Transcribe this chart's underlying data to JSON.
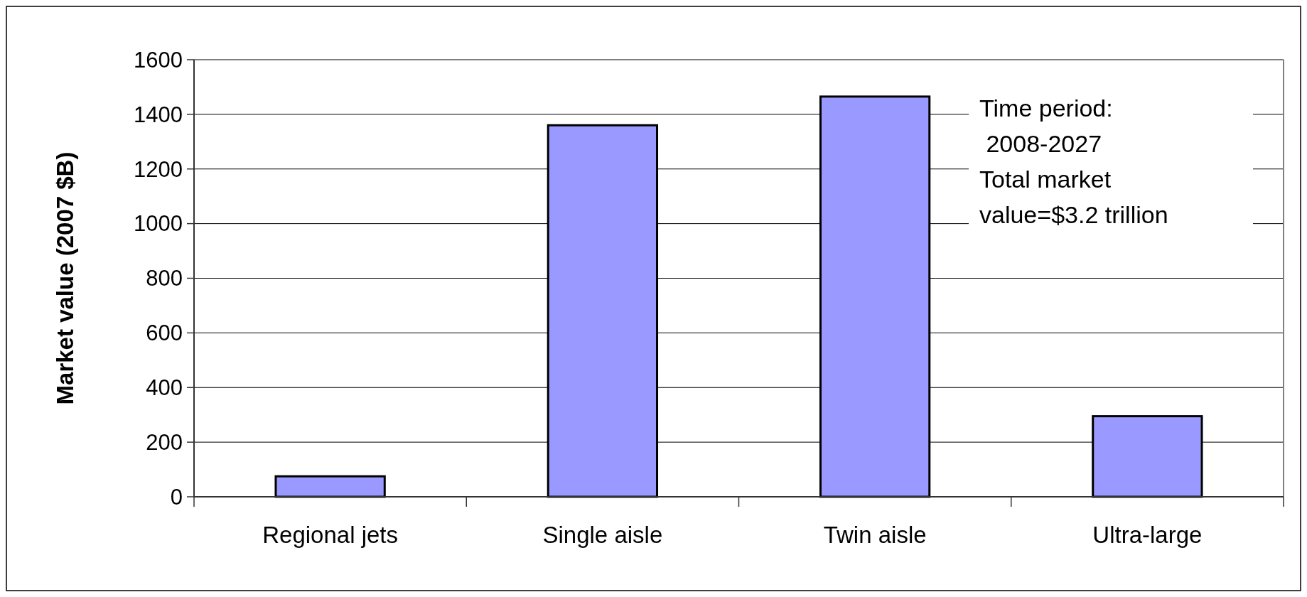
{
  "chart_data": {
    "type": "bar",
    "ylabel": "Market value (2007 $B)",
    "categories": [
      "Regional jets",
      "Single aisle",
      "Twin aisle",
      "Ultra-large"
    ],
    "values": [
      75,
      1360,
      1465,
      295
    ],
    "color": "#9999ff",
    "ylim": [
      0,
      1600
    ],
    "yticks": [
      0,
      200,
      400,
      600,
      800,
      1000,
      1200,
      1400,
      1600
    ],
    "grid": "y",
    "annotations": [
      "Time period:\n 2008-2027\nTotal market\nvalue=$3.2 trillion"
    ]
  }
}
